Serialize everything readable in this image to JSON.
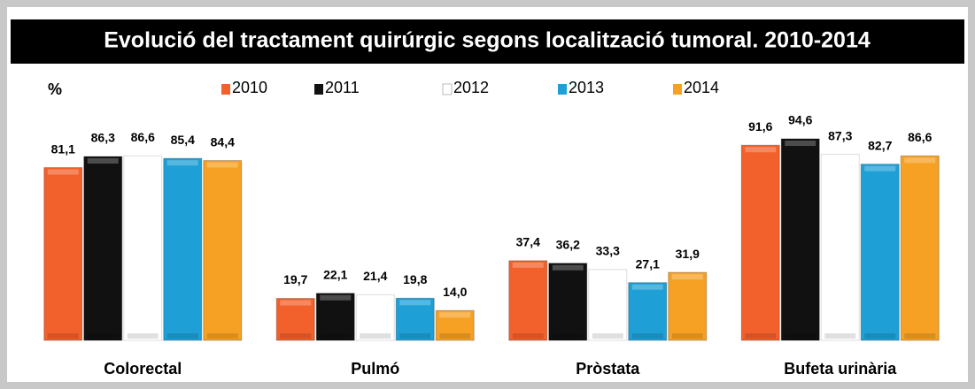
{
  "chart_data": {
    "type": "bar",
    "title": "Evolució del tractament quirúrgic segons localització tumoral. 2010-2014",
    "y_label": "%",
    "categories": [
      "Colorectal",
      "Pulmó",
      "Pròstata",
      "Bufeta urinària"
    ],
    "ylim": [
      0,
      100
    ],
    "series": [
      {
        "name": "2010",
        "color": "#f2602c",
        "values": [
          81.1,
          19.7,
          37.4,
          91.6
        ],
        "value_labels": [
          "81,1",
          "19,7",
          "37,4",
          "91,6"
        ]
      },
      {
        "name": "2011",
        "color": "#111111",
        "values": [
          86.3,
          22.1,
          36.2,
          94.6
        ],
        "value_labels": [
          "86,3",
          "22,1",
          "36,2",
          "94,6"
        ]
      },
      {
        "name": "2012",
        "color": "#ffffff",
        "values": [
          86.6,
          21.4,
          33.3,
          87.3
        ],
        "value_labels": [
          "86,6",
          "21,4",
          "33,3",
          "87,3"
        ]
      },
      {
        "name": "2013",
        "color": "#1e9fd6",
        "values": [
          85.4,
          19.8,
          27.1,
          82.7
        ],
        "value_labels": [
          "85,4",
          "19,8",
          "27,1",
          "82,7"
        ]
      },
      {
        "name": "2014",
        "color": "#f6a124",
        "values": [
          84.4,
          14.0,
          31.9,
          86.6
        ],
        "value_labels": [
          "84,4",
          "14,0",
          "31,9",
          "86,6"
        ]
      }
    ]
  }
}
